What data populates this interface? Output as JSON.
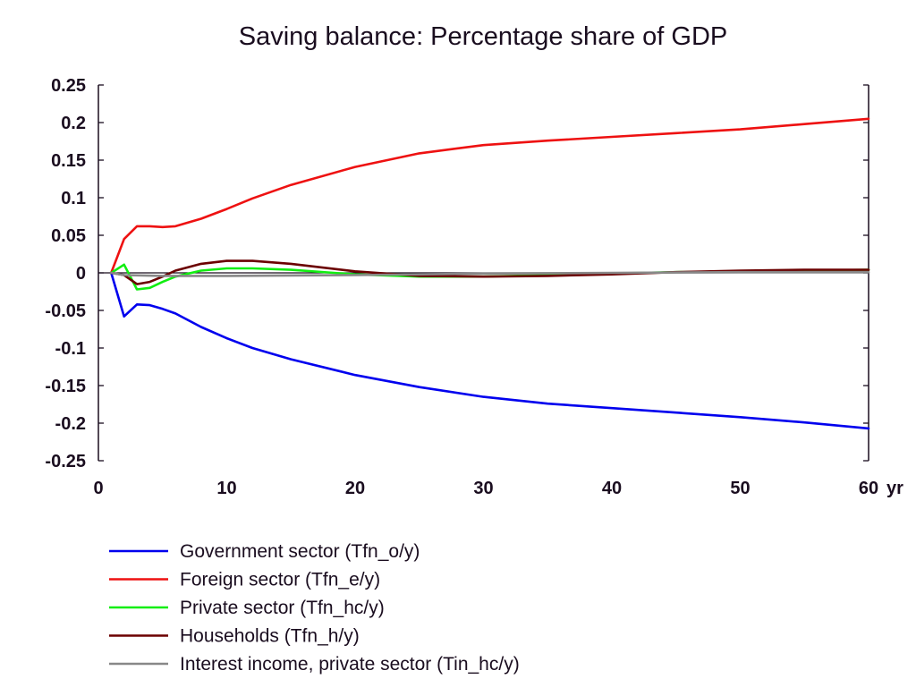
{
  "chart_data": {
    "type": "line",
    "title": "Saving balance: Percentage share of GDP",
    "xlabel": "",
    "ylabel": "",
    "x_unit_label": "yr",
    "xlim": [
      0,
      60
    ],
    "ylim": [
      -0.25,
      0.25
    ],
    "x_ticks": [
      0,
      10,
      20,
      30,
      40,
      50,
      60
    ],
    "x_tick_labels": [
      "0",
      "10",
      "20",
      "30",
      "40",
      "50",
      "60"
    ],
    "y_ticks": [
      0.25,
      0.2,
      0.15,
      0.1,
      0.05,
      0,
      -0.05,
      -0.1,
      -0.15,
      -0.2,
      -0.25
    ],
    "y_tick_labels": [
      "0.25",
      "0.2",
      "0.15",
      "0.1",
      "0.05",
      "0",
      "-0.05",
      "-0.1",
      "-0.15",
      "-0.2",
      "-0.25"
    ],
    "grid": false,
    "legend_position": "bottom",
    "series": [
      {
        "name": "Government sector (Tfn_o/y)",
        "color": "#0000ee",
        "x": [
          1,
          2,
          3,
          4,
          5,
          6,
          8,
          10,
          12,
          15,
          20,
          25,
          30,
          35,
          40,
          45,
          50,
          55,
          60
        ],
        "y": [
          0,
          -0.058,
          -0.042,
          -0.043,
          -0.048,
          -0.054,
          -0.072,
          -0.087,
          -0.1,
          -0.115,
          -0.136,
          -0.152,
          -0.165,
          -0.174,
          -0.18,
          -0.186,
          -0.192,
          -0.199,
          -0.207
        ]
      },
      {
        "name": "Foreign sector (Tfn_e/y)",
        "color": "#ee1111",
        "x": [
          1,
          2,
          3,
          4,
          5,
          6,
          8,
          10,
          12,
          15,
          20,
          25,
          30,
          35,
          40,
          45,
          50,
          55,
          60
        ],
        "y": [
          0,
          0.045,
          0.062,
          0.062,
          0.061,
          0.062,
          0.072,
          0.085,
          0.099,
          0.117,
          0.141,
          0.159,
          0.17,
          0.176,
          0.181,
          0.186,
          0.191,
          0.198,
          0.205
        ]
      },
      {
        "name": "Private sector (Tfn_hc/y)",
        "color": "#11ee11",
        "x": [
          1,
          2,
          3,
          4,
          5,
          6,
          8,
          10,
          12,
          15,
          20,
          25,
          30,
          35,
          40,
          45,
          50,
          55,
          60
        ],
        "y": [
          0,
          0.011,
          -0.022,
          -0.02,
          -0.012,
          -0.005,
          0.003,
          0.006,
          0.006,
          0.004,
          -0.002,
          -0.005,
          -0.005,
          -0.003,
          -0.001,
          0.001,
          0.002,
          0.003,
          0.004
        ]
      },
      {
        "name": "Households (Tfn_h/y)",
        "color": "#6b0000",
        "x": [
          1,
          2,
          3,
          4,
          5,
          6,
          8,
          10,
          12,
          15,
          20,
          25,
          30,
          35,
          40,
          45,
          50,
          55,
          60
        ],
        "y": [
          0,
          -0.003,
          -0.015,
          -0.012,
          -0.005,
          0.003,
          0.012,
          0.016,
          0.016,
          0.012,
          0.002,
          -0.004,
          -0.005,
          -0.004,
          -0.002,
          0.001,
          0.003,
          0.004,
          0.004
        ]
      },
      {
        "name": "Interest income, private sector (Tin_hc/y)",
        "color": "#888888",
        "x": [
          1,
          2,
          5,
          10,
          20,
          30,
          40,
          50,
          60
        ],
        "y": [
          0,
          -0.003,
          -0.004,
          -0.004,
          -0.003,
          -0.001,
          0,
          0.001,
          0.001
        ]
      }
    ]
  }
}
